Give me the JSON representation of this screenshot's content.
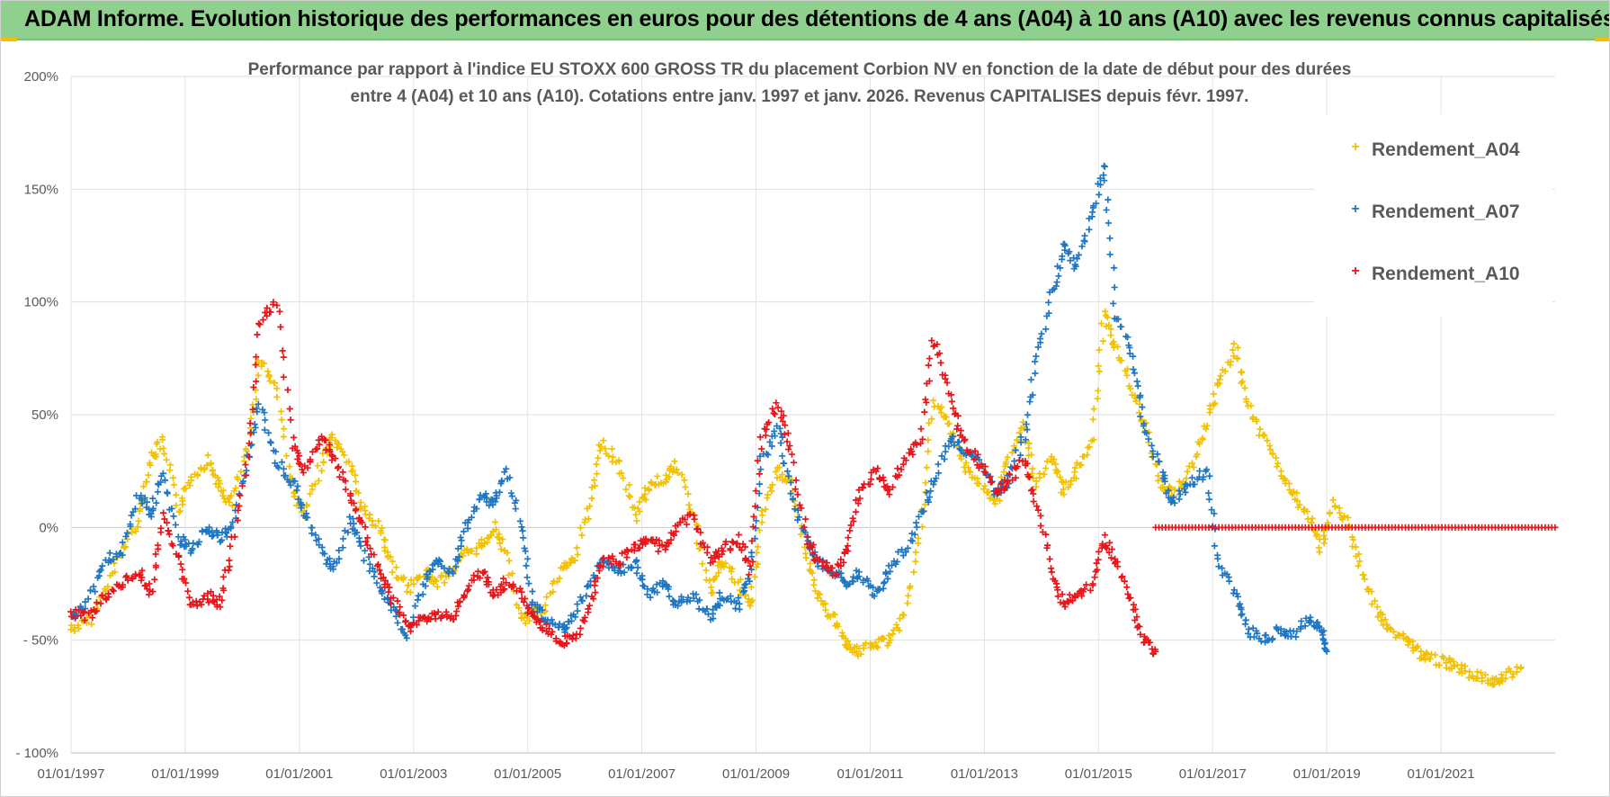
{
  "header": {
    "title": "ADAM Informe. Evolution historique des performances en euros pour des détentions de 4 ans (A04) à 10 ans (A10) avec les revenus connus capitalisés"
  },
  "chart_data": {
    "type": "scatter",
    "title_line1": "Performance par rapport à l'indice EU STOXX 600 GROSS TR  du placement Corbion NV en fonction de la date de début pour des durées",
    "title_line2": "entre 4 (A04) et 10 ans (A10).  Cotations entre janv. 1997 et janv. 2026. Revenus CAPITALISES depuis févr. 1997.",
    "x_ticks": [
      "01/01/1997",
      "01/01/1999",
      "01/01/2001",
      "01/01/2003",
      "01/01/2005",
      "01/01/2007",
      "01/01/2009",
      "01/01/2011",
      "01/01/2013",
      "01/01/2015",
      "01/01/2017",
      "01/01/2019",
      "01/01/2021"
    ],
    "y_ticks": [
      "200%",
      "150%",
      "100%",
      "50%",
      "0%",
      "- 50%",
      "- 100%"
    ],
    "xlim": [
      1997.0,
      2023.0
    ],
    "ylim": [
      -100,
      200
    ],
    "grid": true,
    "legend_position": "right",
    "series": [
      {
        "name": "Rendement_A04",
        "color": "#f2c200",
        "x": [
          1997.0,
          1997.3,
          1997.6,
          1997.9,
          1998.2,
          1998.4,
          1998.6,
          1998.9,
          1999.1,
          1999.4,
          1999.6,
          1999.8,
          2000.1,
          2000.3,
          2000.6,
          2000.9,
          2001.1,
          2001.4,
          2001.6,
          2001.9,
          2002.1,
          2002.4,
          2002.6,
          2002.9,
          2003.2,
          2003.4,
          2003.7,
          2003.9,
          2004.2,
          2004.4,
          2004.6,
          2004.9,
          2005.1,
          2005.3,
          2005.6,
          2005.8,
          2006.1,
          2006.3,
          2006.6,
          2006.9,
          2007.1,
          2007.4,
          2007.6,
          2007.9,
          2008.2,
          2008.4,
          2008.7,
          2008.9,
          2009.1,
          2009.4,
          2009.6,
          2009.9,
          2010.1,
          2010.4,
          2010.6,
          2010.8,
          2011.1,
          2011.3,
          2011.6,
          2011.9,
          2012.1,
          2012.4,
          2012.6,
          2012.9,
          2013.2,
          2013.4,
          2013.7,
          2013.9,
          2014.2,
          2014.4,
          2014.6,
          2014.9,
          2015.1,
          2015.3,
          2015.6,
          2015.8,
          2016.1,
          2016.3,
          2016.6,
          2016.9,
          2017.1,
          2017.4,
          2017.6,
          2017.9,
          2018.2,
          2018.4,
          2018.7,
          2018.9,
          2019.1,
          2019.4,
          2019.6,
          2019.9,
          2020.1,
          2020.4,
          2020.6,
          2020.8,
          2021.1,
          2021.3,
          2021.6,
          2021.9,
          2022.1,
          2022.4
        ],
        "y": [
          -45,
          -42,
          -28,
          -10,
          5,
          30,
          38,
          8,
          22,
          30,
          18,
          10,
          35,
          75,
          62,
          15,
          5,
          30,
          40,
          28,
          8,
          0,
          -15,
          -28,
          -20,
          -25,
          -18,
          -12,
          -8,
          0,
          -10,
          -42,
          -38,
          -35,
          -18,
          -15,
          10,
          38,
          28,
          5,
          18,
          22,
          28,
          5,
          -28,
          -15,
          -25,
          -35,
          5,
          25,
          20,
          -15,
          -32,
          -42,
          -52,
          -55,
          -52,
          -50,
          -40,
          0,
          55,
          45,
          30,
          20,
          10,
          30,
          45,
          20,
          30,
          15,
          25,
          40,
          95,
          80,
          60,
          45,
          20,
          15,
          25,
          45,
          65,
          80,
          55,
          40,
          25,
          15,
          5,
          -10,
          10,
          0,
          -20,
          -38,
          -45,
          -50,
          -55,
          -58,
          -60,
          -62,
          -66,
          -68,
          -66,
          -62
        ]
      },
      {
        "name": "Rendement_A07",
        "color": "#1f77c4",
        "x": [
          1997.0,
          1997.3,
          1997.6,
          1997.9,
          1998.2,
          1998.4,
          1998.6,
          1998.9,
          1999.1,
          1999.4,
          1999.6,
          1999.8,
          2000.1,
          2000.3,
          2000.6,
          2000.9,
          2001.1,
          2001.4,
          2001.6,
          2001.9,
          2002.1,
          2002.4,
          2002.6,
          2002.9,
          2003.2,
          2003.4,
          2003.7,
          2003.9,
          2004.2,
          2004.4,
          2004.6,
          2004.9,
          2005.1,
          2005.3,
          2005.6,
          2005.8,
          2006.1,
          2006.3,
          2006.6,
          2006.9,
          2007.1,
          2007.4,
          2007.6,
          2007.9,
          2008.2,
          2008.4,
          2008.7,
          2008.9,
          2009.1,
          2009.4,
          2009.6,
          2009.9,
          2010.1,
          2010.4,
          2010.6,
          2010.8,
          2011.1,
          2011.3,
          2011.6,
          2011.9,
          2012.1,
          2012.4,
          2012.6,
          2012.9,
          2013.2,
          2013.4,
          2013.7,
          2013.9,
          2014.2,
          2014.4,
          2014.6,
          2014.9,
          2015.1,
          2015.3,
          2015.6,
          2015.8,
          2016.1,
          2016.3,
          2016.6,
          2016.9,
          2017.1,
          2017.4,
          2017.6,
          2017.9,
          2018.2,
          2018.4,
          2018.7,
          2018.9,
          2019.0
        ],
        "y": [
          -40,
          -32,
          -15,
          -10,
          15,
          5,
          25,
          -5,
          -10,
          0,
          -5,
          0,
          30,
          55,
          30,
          20,
          5,
          -10,
          -20,
          5,
          -10,
          -25,
          -35,
          -48,
          -25,
          -15,
          -20,
          0,
          15,
          10,
          25,
          0,
          -35,
          -40,
          -45,
          -40,
          -25,
          -15,
          -20,
          -15,
          -30,
          -25,
          -35,
          -30,
          -40,
          -30,
          -35,
          -20,
          30,
          45,
          15,
          -5,
          -15,
          -20,
          -25,
          -20,
          -30,
          -20,
          -10,
          5,
          20,
          40,
          35,
          30,
          15,
          20,
          40,
          75,
          105,
          125,
          115,
          140,
          160,
          95,
          75,
          45,
          25,
          10,
          20,
          25,
          -15,
          -30,
          -45,
          -50,
          -45,
          -48,
          -40,
          -45,
          -55
        ]
      },
      {
        "name": "Rendement_A10",
        "color": "#e8161b",
        "x": [
          1997.0,
          1997.3,
          1997.6,
          1997.9,
          1998.2,
          1998.4,
          1998.6,
          1998.9,
          1999.1,
          1999.4,
          1999.6,
          1999.8,
          2000.1,
          2000.3,
          2000.6,
          2000.9,
          2001.1,
          2001.4,
          2001.6,
          2001.9,
          2002.1,
          2002.4,
          2002.6,
          2002.9,
          2003.2,
          2003.4,
          2003.7,
          2003.9,
          2004.2,
          2004.4,
          2004.6,
          2004.9,
          2005.1,
          2005.3,
          2005.6,
          2005.8,
          2006.1,
          2006.3,
          2006.6,
          2006.9,
          2007.1,
          2007.4,
          2007.6,
          2007.9,
          2008.2,
          2008.4,
          2008.7,
          2008.9,
          2009.1,
          2009.4,
          2009.6,
          2009.9,
          2010.1,
          2010.4,
          2010.6,
          2010.8,
          2011.1,
          2011.3,
          2011.6,
          2011.9,
          2012.1,
          2012.4,
          2012.6,
          2012.9,
          2013.2,
          2013.4,
          2013.7,
          2013.9,
          2014.2,
          2014.4,
          2014.6,
          2014.9,
          2015.1,
          2015.3,
          2015.6,
          2015.8,
          2016.0
        ],
        "y": [
          -38,
          -40,
          -30,
          -25,
          -20,
          -30,
          5,
          -15,
          -35,
          -30,
          -35,
          -10,
          30,
          90,
          100,
          35,
          25,
          40,
          30,
          15,
          0,
          -20,
          -30,
          -45,
          -40,
          -38,
          -40,
          -28,
          -20,
          -30,
          -25,
          -30,
          -40,
          -45,
          -50,
          -50,
          -35,
          -15,
          -15,
          -8,
          -5,
          -10,
          0,
          5,
          -15,
          -10,
          -5,
          -20,
          40,
          55,
          35,
          -5,
          -15,
          -20,
          -10,
          15,
          25,
          15,
          30,
          40,
          85,
          60,
          40,
          30,
          15,
          20,
          30,
          10,
          -20,
          -35,
          -30,
          -25,
          -5,
          -15,
          -35,
          -50,
          -55
        ]
      },
      {
        "name": "",
        "color": "#e8161b",
        "x": [
          2016.0,
          2023.0
        ],
        "y": [
          0,
          0
        ]
      }
    ]
  }
}
